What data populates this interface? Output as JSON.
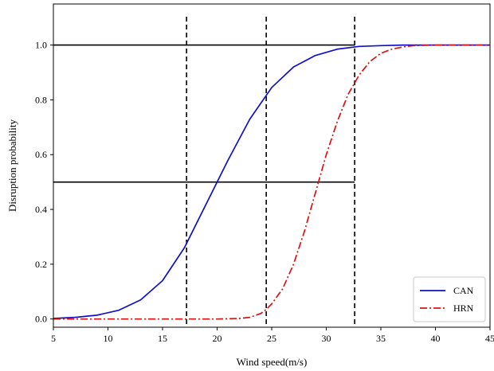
{
  "chart_data": {
    "type": "line",
    "title": "",
    "xlabel": "Wind speed(m/s)",
    "ylabel": "Disruption probability",
    "xlim": [
      5,
      45
    ],
    "ylim": [
      -0.03,
      1.15
    ],
    "xticks": [
      5,
      10,
      15,
      20,
      25,
      30,
      35,
      40,
      45
    ],
    "yticks": [
      0.0,
      0.2,
      0.4,
      0.6,
      0.8,
      1.0
    ],
    "grid": false,
    "legend_position": "bottom-right",
    "series": [
      {
        "name": "CAN",
        "style": "solid",
        "color": "#1010c8",
        "x": [
          5,
          7,
          9,
          11,
          13,
          15,
          17,
          19,
          21,
          23,
          25,
          27,
          29,
          31,
          33,
          35,
          37,
          40,
          45
        ],
        "y": [
          0.002,
          0.006,
          0.014,
          0.032,
          0.07,
          0.14,
          0.26,
          0.42,
          0.58,
          0.73,
          0.845,
          0.92,
          0.962,
          0.985,
          0.995,
          0.998,
          1.0,
          1.0,
          1.0
        ]
      },
      {
        "name": "HRN",
        "style": "dashdot",
        "color": "#dd1111",
        "x": [
          5,
          10,
          15,
          20,
          22,
          23,
          24,
          24.5,
          25,
          26,
          27,
          28,
          29,
          30,
          31,
          32,
          33,
          34,
          35,
          36,
          37,
          38,
          40,
          45
        ],
        "y": [
          0.0,
          0.0,
          0.0,
          0.0,
          0.002,
          0.006,
          0.02,
          0.035,
          0.055,
          0.11,
          0.2,
          0.32,
          0.46,
          0.6,
          0.72,
          0.82,
          0.89,
          0.94,
          0.97,
          0.985,
          0.993,
          0.998,
          1.0,
          1.0
        ]
      }
    ],
    "reference_lines": {
      "vertical_dashed": [
        17.2,
        24.5,
        32.6
      ],
      "horizontal_solid": [
        {
          "y": 1.0,
          "x_from": 5,
          "x_to": 32.6
        },
        {
          "y": 0.5,
          "x_from": 5,
          "x_to": 32.6
        }
      ]
    }
  }
}
